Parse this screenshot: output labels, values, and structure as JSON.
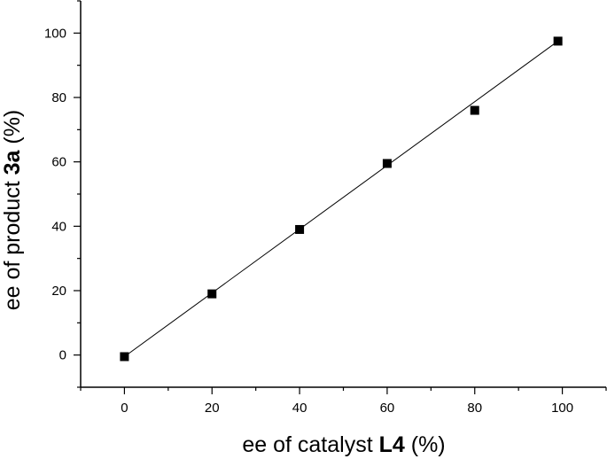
{
  "chart_data": {
    "type": "scatter",
    "xlabel_parts": [
      "ee of catalyst ",
      "L4",
      " (%)"
    ],
    "ylabel_parts": [
      "ee of product ",
      "3a",
      " (%)"
    ],
    "xlim": [
      -10,
      110
    ],
    "ylim": [
      -10,
      110
    ],
    "x_ticks": [
      0,
      20,
      40,
      60,
      80,
      100
    ],
    "y_ticks": [
      0,
      20,
      40,
      60,
      80,
      100
    ],
    "grid": false,
    "series": [
      {
        "marker": "square",
        "color": "#000000",
        "points": [
          {
            "x": 0,
            "y": -0.5
          },
          {
            "x": 20,
            "y": 19
          },
          {
            "x": 40,
            "y": 39
          },
          {
            "x": 60,
            "y": 59.5
          },
          {
            "x": 80,
            "y": 76
          },
          {
            "x": 99,
            "y": 97.5
          }
        ]
      }
    ],
    "fit_line": {
      "x": [
        0,
        99
      ],
      "y": [
        -0.5,
        97.5
      ],
      "color": "#000000"
    }
  }
}
